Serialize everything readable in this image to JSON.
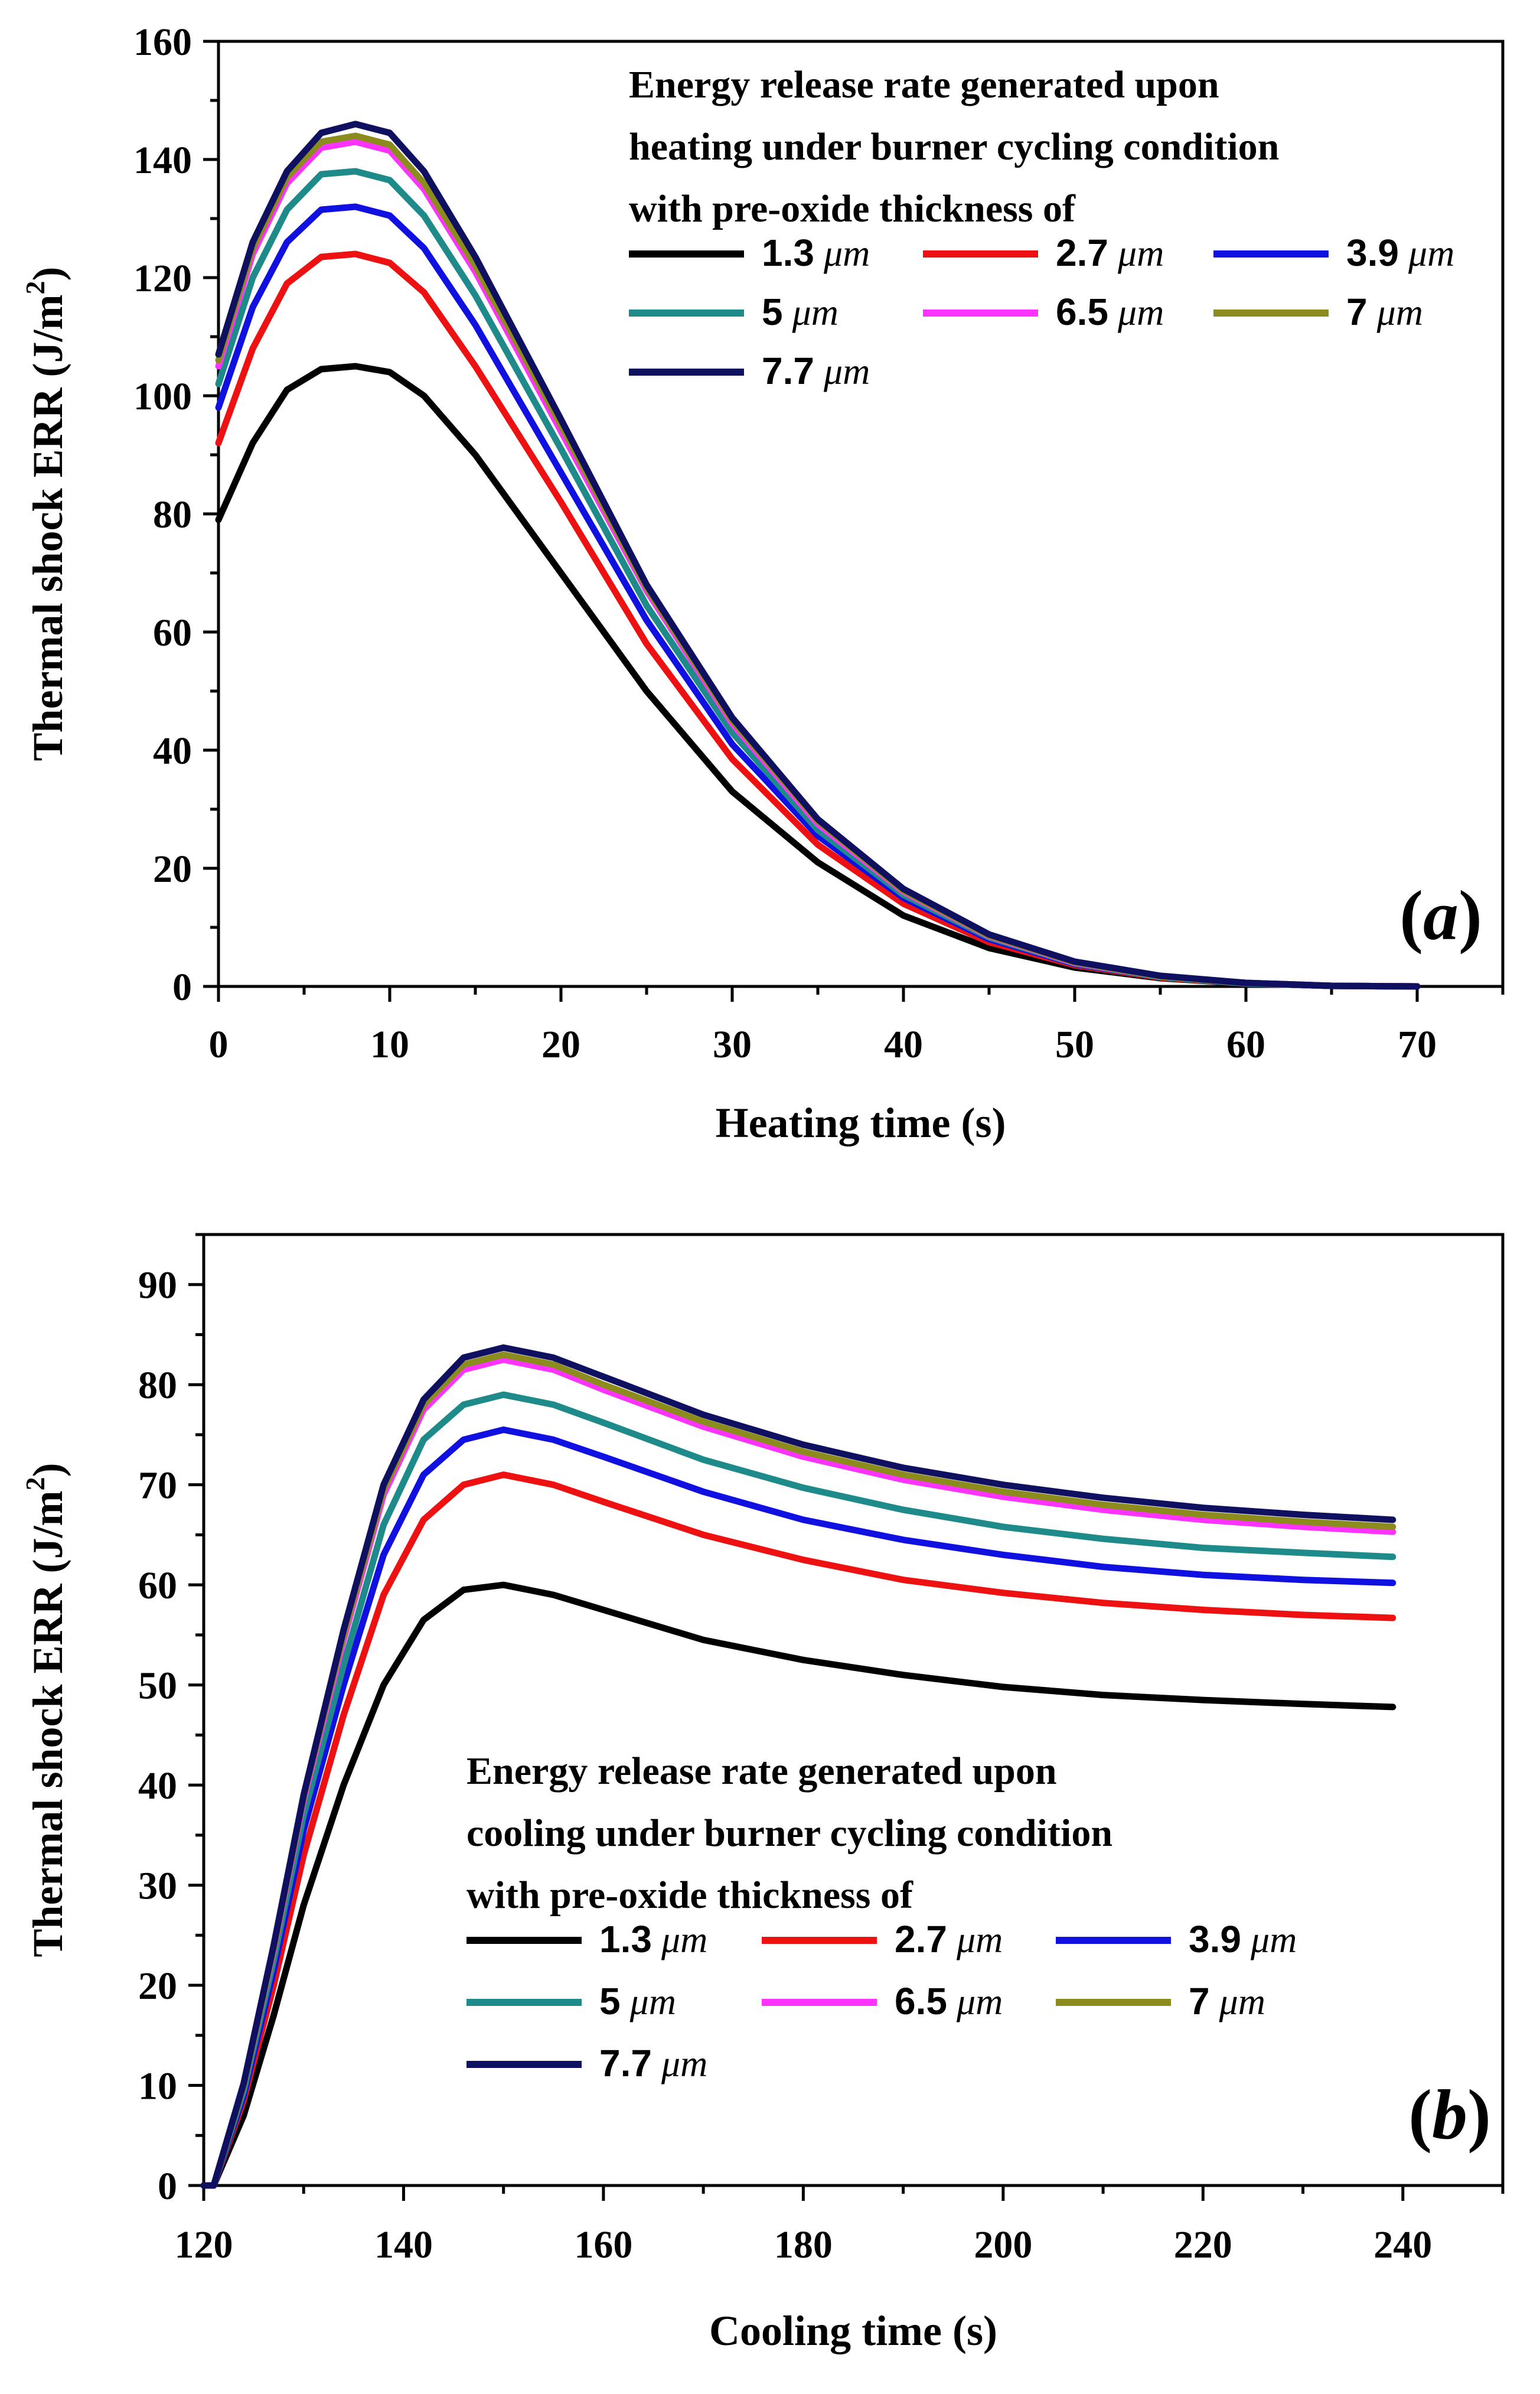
{
  "chart_data": [
    {
      "type": "line",
      "panel_label": "a",
      "xlabel": "Heating time (s)",
      "ylabel": "Thermal shock ERR (J/m",
      "ylabel_sup": "2",
      "ylabel_close": ")",
      "xlim": [
        0,
        75
      ],
      "ylim": [
        0,
        160
      ],
      "xticks": [
        0,
        10,
        20,
        30,
        40,
        50,
        60,
        70
      ],
      "xtick_labels": [
        "0",
        "10",
        "20",
        "30",
        "40",
        "50",
        "60",
        "70"
      ],
      "yticks": [
        0,
        20,
        40,
        60,
        80,
        100,
        120,
        140,
        160
      ],
      "ytick_labels": [
        "0",
        "20",
        "40",
        "60",
        "80",
        "100",
        "120",
        "140",
        "160"
      ],
      "legend": {
        "position": "top-right",
        "title_lines": [
          "Energy release rate generated upon",
          "heating under burner cycling condition",
          "with pre-oxide thickness of"
        ]
      },
      "x": [
        0,
        2,
        4,
        6,
        8,
        10,
        12,
        15,
        20,
        25,
        30,
        35,
        40,
        45,
        50,
        55,
        60,
        65,
        70
      ],
      "series": [
        {
          "name": "1.3",
          "unit": "μm",
          "color": "#000000",
          "values": [
            79,
            92,
            101,
            104.5,
            105,
            104,
            100,
            90,
            70,
            50,
            33,
            21,
            12,
            6.5,
            3.2,
            1.4,
            0.5,
            0.1,
            0
          ]
        },
        {
          "name": "2.7",
          "unit": "μm",
          "color": "#ee1111",
          "values": [
            92,
            108,
            119,
            123.5,
            124,
            122.5,
            117.5,
            105,
            82,
            58,
            38.5,
            24,
            14,
            7.5,
            3.6,
            1.5,
            0.5,
            0.1,
            0
          ]
        },
        {
          "name": "3.9",
          "unit": "μm",
          "color": "#1010e0",
          "values": [
            98,
            115,
            126,
            131.5,
            132,
            130.5,
            125,
            112,
            87,
            62,
            41,
            25.5,
            15,
            8,
            3.8,
            1.6,
            0.5,
            0.1,
            0
          ]
        },
        {
          "name": "5",
          "unit": "μm",
          "color": "#1f8a8a",
          "values": [
            102,
            120,
            131.5,
            137.5,
            138,
            136.5,
            130.5,
            117,
            91,
            64.5,
            43,
            26.5,
            15.5,
            8.3,
            3.9,
            1.6,
            0.5,
            0.1,
            0
          ]
        },
        {
          "name": "6.5",
          "unit": "μm",
          "color": "#ff33ff",
          "values": [
            105,
            124,
            136,
            142,
            143,
            141.5,
            135,
            121,
            94,
            67,
            44.5,
            27.5,
            16,
            8.5,
            4,
            1.7,
            0.6,
            0.1,
            0
          ]
        },
        {
          "name": "7",
          "unit": "μm",
          "color": "#8c8c1e",
          "values": [
            106,
            125,
            137,
            143,
            144,
            142.5,
            136,
            122,
            95,
            67.5,
            45,
            28,
            16.2,
            8.6,
            4.1,
            1.7,
            0.6,
            0.1,
            0
          ]
        },
        {
          "name": "7.7",
          "unit": "μm",
          "color": "#101060",
          "values": [
            107,
            126,
            138,
            144.5,
            146,
            144.5,
            138,
            123.5,
            96,
            68,
            45.5,
            28.3,
            16.5,
            8.8,
            4.2,
            1.8,
            0.6,
            0.1,
            0
          ]
        }
      ]
    },
    {
      "type": "line",
      "panel_label": "b",
      "xlabel": "Cooling time (s)",
      "ylabel": "Thermal shock ERR (J/m",
      "ylabel_sup": "2",
      "ylabel_close": ")",
      "xlim": [
        120,
        250
      ],
      "ylim": [
        0,
        95
      ],
      "xticks": [
        120,
        140,
        160,
        180,
        200,
        220,
        240
      ],
      "xtick_labels": [
        "120",
        "140",
        "160",
        "180",
        "200",
        "220",
        "240"
      ],
      "yticks": [
        0,
        10,
        20,
        30,
        40,
        50,
        60,
        70,
        80,
        90
      ],
      "ytick_labels": [
        "0",
        "10",
        "20",
        "30",
        "40",
        "50",
        "60",
        "70",
        "80",
        "90"
      ],
      "legend": {
        "position": "bottom-center",
        "title_lines": [
          "Energy release rate generated upon",
          "cooling under burner cycling condition",
          "with pre-oxide thickness of"
        ]
      },
      "x": [
        120,
        121,
        124,
        127,
        130,
        134,
        138,
        142,
        146,
        150,
        155,
        160,
        170,
        180,
        190,
        200,
        210,
        220,
        230,
        239
      ],
      "series": [
        {
          "name": "1.3",
          "unit": "μm",
          "color": "#000000",
          "values": [
            0,
            0,
            7,
            17,
            28,
            40,
            50,
            56.5,
            59.5,
            60,
            59,
            57.5,
            54.5,
            52.5,
            51,
            49.8,
            49,
            48.5,
            48.1,
            47.8
          ]
        },
        {
          "name": "2.7",
          "unit": "μm",
          "color": "#ee1111",
          "values": [
            0,
            0,
            8.5,
            20,
            33,
            47,
            59,
            66.5,
            70,
            71,
            70,
            68.3,
            65,
            62.5,
            60.5,
            59.2,
            58.2,
            57.5,
            57,
            56.7
          ]
        },
        {
          "name": "3.9",
          "unit": "μm",
          "color": "#1010e0",
          "values": [
            0,
            0,
            9,
            21.5,
            35.5,
            50,
            63,
            71,
            74.5,
            75.5,
            74.5,
            72.8,
            69.3,
            66.5,
            64.5,
            63,
            61.8,
            61,
            60.5,
            60.2
          ]
        },
        {
          "name": "5",
          "unit": "μm",
          "color": "#1f8a8a",
          "values": [
            0,
            0,
            9.5,
            22.5,
            37,
            52,
            66,
            74.5,
            78,
            79,
            78,
            76.2,
            72.5,
            69.7,
            67.5,
            65.8,
            64.6,
            63.7,
            63.2,
            62.8
          ]
        },
        {
          "name": "6.5",
          "unit": "μm",
          "color": "#ff33ff",
          "values": [
            0,
            0,
            10,
            23.5,
            38.5,
            54.5,
            69,
            77.5,
            81.5,
            82.5,
            81.5,
            79.5,
            75.8,
            72.8,
            70.5,
            68.8,
            67.5,
            66.5,
            65.8,
            65.3
          ]
        },
        {
          "name": "7",
          "unit": "μm",
          "color": "#8c8c1e",
          "values": [
            0,
            0,
            10,
            23.7,
            38.8,
            55,
            69.5,
            78,
            82,
            83,
            82,
            80,
            76.3,
            73.3,
            71,
            69.3,
            68,
            67,
            66.3,
            65.8
          ]
        },
        {
          "name": "7.7",
          "unit": "μm",
          "color": "#101060",
          "values": [
            0,
            0,
            10.2,
            24,
            39,
            55.5,
            70,
            78.5,
            82.7,
            83.7,
            82.7,
            80.8,
            77,
            74,
            71.7,
            70,
            68.7,
            67.7,
            67,
            66.5
          ]
        }
      ]
    }
  ]
}
